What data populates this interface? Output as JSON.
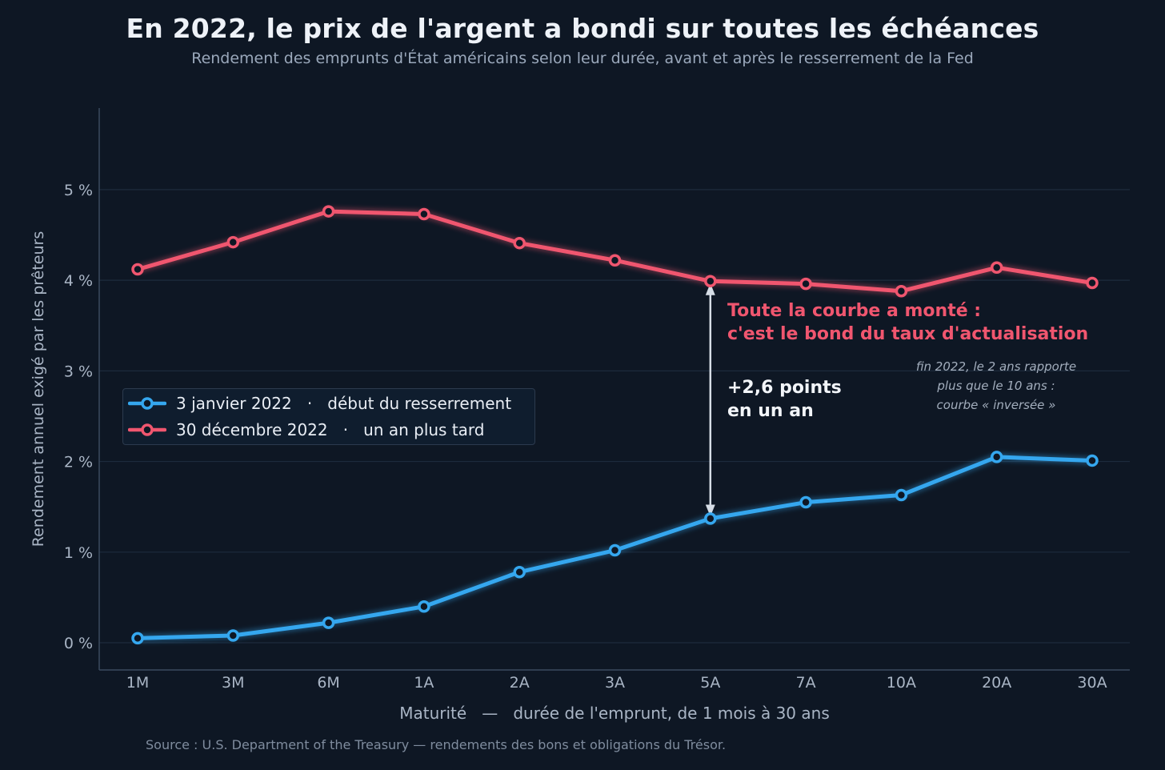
{
  "title": "En 2022, le prix de l'argent a bondi sur toutes les échéances",
  "subtitle": "Rendement des emprunts d'État américains selon leur durée, avant et après le resserrement de la Fed",
  "source": "Source : U.S. Department of the Treasury — rendements des bons et obligations du Trésor.",
  "colors": {
    "background": "#0e1724",
    "series_jan": "#35a7ef",
    "series_dec": "#f0566f",
    "grid": "#1d2b3c",
    "axis": "#3a4a5e",
    "tick": "#a9b5c5"
  },
  "annotations": {
    "red_line1": "Toute la courbe a monté :",
    "red_line2": "c'est le bond du taux d'actualisation",
    "gap_line1": "+2,6 points",
    "gap_line2": "en un an",
    "note_line1": "fin 2022, le 2 ans rapporte",
    "note_line2": "plus que le 10 ans :",
    "note_line3": "courbe « inversée »"
  },
  "legend": [
    {
      "label": "3 janvier 2022   ·   début du resserrement"
    },
    {
      "label": "30 décembre 2022   ·   un an plus tard"
    }
  ],
  "chart_data": {
    "type": "line",
    "title": "En 2022, le prix de l'argent a bondi sur toutes les échéances",
    "subtitle": "Rendement des emprunts d'État américains selon leur durée, avant et après le resserrement de la Fed",
    "xlabel": "Maturité   —   durée de l'emprunt, de 1 mois à 30 ans",
    "ylabel": "Rendement annuel exigé par les prêteurs",
    "categories": [
      "1M",
      "3M",
      "6M",
      "1A",
      "2A",
      "3A",
      "5A",
      "7A",
      "10A",
      "20A",
      "30A"
    ],
    "yticks": [
      "0 %",
      "1 %",
      "2 %",
      "3 %",
      "4 %",
      "5 %"
    ],
    "ylim": [
      -0.3,
      5.9
    ],
    "grid": true,
    "legend_position": "center-left",
    "series": [
      {
        "name": "3 janvier 2022   ·   début du resserrement",
        "color": "#35a7ef",
        "values": [
          0.05,
          0.08,
          0.22,
          0.4,
          0.78,
          1.02,
          1.37,
          1.55,
          1.63,
          2.05,
          2.01
        ]
      },
      {
        "name": "30 décembre 2022   ·   un an plus tard",
        "color": "#f0566f",
        "values": [
          4.12,
          4.42,
          4.76,
          4.73,
          4.41,
          4.22,
          3.99,
          3.96,
          3.88,
          4.14,
          3.97
        ]
      }
    ],
    "gap_arrow_category": "5A"
  }
}
